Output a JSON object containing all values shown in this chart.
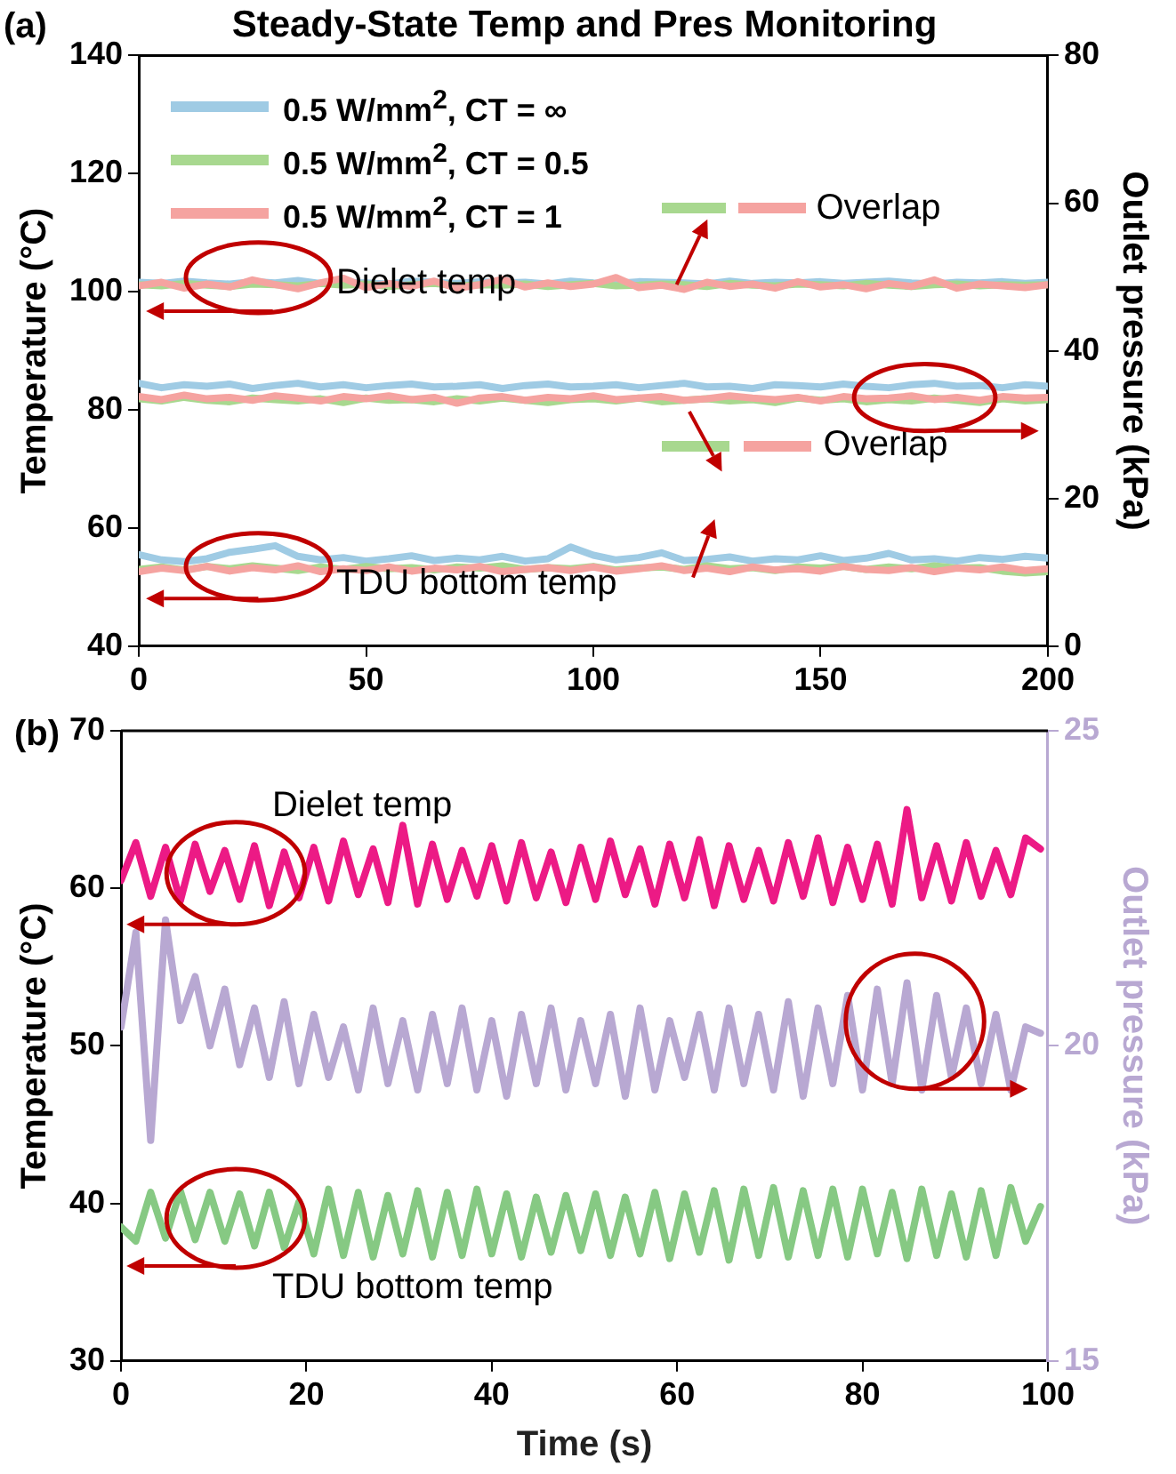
{
  "chart_data": [
    {
      "type": "line",
      "title": "Steady-State Temp and Pres Monitoring",
      "ylabel": "Temperature (°C)",
      "y2label": "Outlet pressure (kPa)",
      "annotations": [
        "(a)",
        "Dielet temp",
        "Overlap",
        "Overlap",
        "TDU bottom temp"
      ],
      "x": [
        0,
        5,
        10,
        15,
        20,
        25,
        30,
        35,
        40,
        45,
        50,
        55,
        60,
        65,
        70,
        75,
        80,
        85,
        90,
        95,
        100,
        105,
        110,
        115,
        120,
        125,
        130,
        135,
        140,
        145,
        150,
        155,
        160,
        165,
        170,
        175,
        180,
        185,
        190,
        195,
        200
      ],
      "xlim": [
        0,
        200
      ],
      "xticks": [
        0,
        50,
        100,
        150,
        200
      ],
      "ylim": [
        40,
        140
      ],
      "yticks": [
        40,
        60,
        80,
        100,
        120,
        140
      ],
      "y2lim": [
        0,
        80
      ],
      "y2ticks": [
        0,
        20,
        40,
        60,
        80
      ],
      "legend": "top left",
      "marker": "none",
      "line_style": "solid",
      "series": [
        {
          "name": "0.5 W/mm$^{2}$, CT = ∞",
          "color": "#9fcbe4",
          "values": [
            101.6,
            101.4,
            101.8,
            101.5,
            101.3,
            101.7,
            101.5,
            101.9,
            101.4,
            101.6,
            101.5,
            101.3,
            101.8,
            101.6,
            101.4,
            101.7,
            101.5,
            101.6,
            101.3,
            101.8,
            101.5,
            101.4,
            101.7,
            101.6,
            101.5,
            101.3,
            101.8,
            101.4,
            101.6,
            101.5,
            101.7,
            101.4,
            101.6,
            101.8,
            101.5,
            101.3,
            101.6,
            101.5,
            101.7,
            101.4,
            101.6
          ]
        },
        {
          "name": "0.5 W/mm$^{2}$, CT = 0.5",
          "color": "#a8d88f",
          "values": [
            101.2,
            101.0,
            101.4,
            101.1,
            100.9,
            101.3,
            101.2,
            101.0,
            101.4,
            101.1,
            101.3,
            100.9,
            101.2,
            101.4,
            101.0,
            101.2,
            101.1,
            101.3,
            100.9,
            101.2,
            101.4,
            101.0,
            101.1,
            101.3,
            101.2,
            100.9,
            101.4,
            101.1,
            101.0,
            101.3,
            101.2,
            101.0,
            101.4,
            101.1,
            100.9,
            101.2,
            101.3,
            101.0,
            101.2,
            101.1,
            101.2
          ]
        },
        {
          "name": "0.5 W/mm$^{2}$, CT = 1",
          "color": "#f5a3a0",
          "values": [
            101.0,
            101.6,
            100.6,
            101.3,
            100.8,
            102.0,
            101.2,
            100.5,
            101.5,
            102.3,
            100.7,
            101.4,
            100.9,
            101.8,
            100.6,
            101.2,
            102.1,
            100.8,
            101.5,
            100.9,
            101.3,
            102.4,
            100.7,
            101.1,
            100.4,
            101.6,
            100.9,
            101.3,
            100.6,
            101.7,
            100.8,
            101.2,
            100.5,
            101.4,
            100.9,
            102.0,
            100.6,
            101.3,
            101.0,
            100.7,
            101.2
          ]
        },
        {
          "color": "#9fcbe4",
          "axis": "y2",
          "values": [
            35.6,
            35.0,
            35.4,
            35.2,
            35.5,
            34.9,
            35.3,
            35.6,
            35.1,
            35.4,
            35.0,
            35.3,
            35.5,
            35.1,
            35.2,
            35.4,
            34.9,
            35.3,
            35.5,
            35.1,
            35.2,
            35.4,
            35.0,
            35.3,
            35.6,
            35.1,
            35.2,
            34.9,
            35.4,
            35.3,
            35.1,
            35.5,
            35.2,
            35.0,
            35.4,
            35.6,
            35.2,
            35.3,
            35.0,
            35.4,
            35.2
          ]
        },
        {
          "color": "#a8d88f",
          "axis": "y2",
          "values": [
            33.5,
            33.2,
            33.7,
            33.3,
            33.1,
            33.6,
            33.4,
            33.2,
            33.5,
            33.0,
            33.6,
            33.3,
            33.4,
            33.1,
            33.5,
            33.2,
            33.6,
            33.3,
            33.0,
            33.4,
            33.5,
            33.2,
            33.6,
            33.1,
            33.3,
            33.5,
            33.2,
            33.4,
            33.0,
            33.6,
            33.3,
            33.5,
            33.1,
            33.4,
            33.2,
            33.6,
            33.3,
            33.0,
            33.5,
            33.2,
            33.4
          ]
        },
        {
          "color": "#f5a3a0",
          "axis": "y2",
          "values": [
            33.8,
            33.4,
            34.0,
            33.5,
            33.7,
            33.3,
            33.9,
            33.6,
            33.2,
            33.8,
            33.5,
            33.9,
            33.4,
            33.7,
            32.9,
            33.6,
            33.8,
            33.3,
            33.7,
            33.5,
            33.9,
            33.4,
            33.6,
            33.8,
            33.3,
            33.5,
            33.9,
            33.6,
            33.4,
            33.7,
            33.2,
            33.8,
            33.5,
            33.6,
            33.9,
            33.4,
            33.7,
            33.3,
            33.8,
            33.6,
            33.7
          ]
        },
        {
          "color": "#9fcbe4",
          "values": [
            55.5,
            54.6,
            54.3,
            54.8,
            55.9,
            56.4,
            57.0,
            55.2,
            54.6,
            55.0,
            54.4,
            54.8,
            55.3,
            54.5,
            54.9,
            54.6,
            55.2,
            54.4,
            54.8,
            56.8,
            55.4,
            54.6,
            55.0,
            55.8,
            54.5,
            54.7,
            55.1,
            54.4,
            54.8,
            54.6,
            55.3,
            54.5,
            54.9,
            55.7,
            54.6,
            54.8,
            54.4,
            55.0,
            54.7,
            55.2,
            54.9
          ]
        },
        {
          "color": "#a8d88f",
          "values": [
            53.0,
            53.4,
            52.9,
            53.5,
            53.1,
            53.6,
            53.2,
            52.8,
            53.4,
            53.0,
            53.5,
            53.1,
            53.3,
            52.9,
            53.4,
            53.2,
            53.6,
            53.0,
            53.3,
            53.1,
            53.5,
            52.9,
            53.2,
            53.4,
            53.0,
            53.6,
            53.1,
            53.3,
            52.8,
            53.4,
            53.2,
            53.5,
            53.0,
            53.4,
            53.1,
            53.6,
            53.2,
            53.3,
            52.7,
            52.4,
            52.6
          ]
        },
        {
          "color": "#f5a3a0",
          "values": [
            52.6,
            53.2,
            52.8,
            53.5,
            52.7,
            53.3,
            52.9,
            53.6,
            52.6,
            53.1,
            52.8,
            53.4,
            52.7,
            53.2,
            52.9,
            53.5,
            52.6,
            53.0,
            53.3,
            52.8,
            53.4,
            52.7,
            53.1,
            53.6,
            52.8,
            53.2,
            52.6,
            53.4,
            52.9,
            53.1,
            52.7,
            53.5,
            53.0,
            52.8,
            53.3,
            52.6,
            53.2,
            52.9,
            53.4,
            52.8,
            53.1
          ]
        }
      ]
    },
    {
      "type": "line",
      "xlabel": "Time (s)",
      "ylabel": "Temperature (°C)",
      "y2label": "Outlet pressure (kPa)",
      "annotations": [
        "(b)",
        "Dielet temp",
        "TDU bottom temp"
      ],
      "x": [
        0,
        1.6,
        3.2,
        4.8,
        6.4,
        8,
        9.6,
        11.2,
        12.8,
        14.4,
        16,
        17.6,
        19.2,
        20.8,
        22.4,
        24,
        25.6,
        27.2,
        28.8,
        30.4,
        32,
        33.6,
        35.2,
        36.8,
        38.4,
        40,
        41.6,
        43.2,
        44.8,
        46.4,
        48,
        49.6,
        51.2,
        52.8,
        54.4,
        56,
        57.6,
        59.2,
        60.8,
        62.4,
        64,
        65.6,
        67.2,
        68.8,
        70.4,
        72,
        73.6,
        75.2,
        76.8,
        78.4,
        80,
        81.6,
        83.2,
        84.8,
        86.4,
        88,
        89.6,
        91.2,
        92.8,
        94.4,
        96,
        97.6,
        99.2
      ],
      "xlim": [
        0,
        100
      ],
      "xticks": [
        0,
        20,
        40,
        60,
        80,
        100
      ],
      "ylim": [
        30,
        70
      ],
      "yticks": [
        30,
        40,
        50,
        60,
        70
      ],
      "y2lim": [
        15,
        25
      ],
      "y2ticks": [
        15,
        20,
        25
      ],
      "marker": "none",
      "line_style": "solid",
      "series": [
        {
          "color": "#ec1a85",
          "values": [
            60.5,
            62.9,
            59.5,
            62.6,
            59.2,
            62.8,
            59.8,
            62.4,
            59.3,
            62.7,
            58.9,
            62.3,
            59.4,
            62.6,
            59.2,
            63.0,
            59.6,
            62.5,
            59.1,
            64.0,
            59.0,
            62.8,
            59.3,
            62.4,
            59.5,
            62.7,
            59.2,
            62.9,
            59.4,
            62.3,
            59.1,
            62.6,
            59.3,
            63.0,
            59.6,
            62.5,
            59.0,
            62.8,
            59.4,
            63.1,
            58.9,
            62.7,
            59.3,
            62.4,
            59.2,
            62.9,
            59.5,
            63.2,
            59.1,
            62.6,
            59.3,
            62.8,
            59.0,
            65.0,
            59.4,
            62.7,
            59.2,
            62.9,
            59.5,
            62.4,
            59.6,
            63.2,
            62.5
          ]
        },
        {
          "color": "#b8a8d2",
          "axis": "y2",
          "values": [
            20.3,
            21.8,
            18.5,
            22.0,
            20.4,
            21.1,
            20.0,
            20.9,
            19.7,
            20.6,
            19.5,
            20.7,
            19.4,
            20.5,
            19.5,
            20.3,
            19.3,
            20.6,
            19.4,
            20.4,
            19.3,
            20.5,
            19.4,
            20.6,
            19.3,
            20.4,
            19.2,
            20.5,
            19.4,
            20.6,
            19.3,
            20.4,
            19.4,
            20.5,
            19.2,
            20.6,
            19.3,
            20.4,
            19.5,
            20.5,
            19.3,
            20.6,
            19.4,
            20.5,
            19.3,
            20.7,
            19.2,
            20.6,
            19.4,
            20.8,
            19.3,
            20.9,
            19.4,
            21.0,
            19.3,
            20.8,
            19.5,
            20.6,
            19.4,
            20.5,
            19.3,
            20.3,
            20.2
          ]
        },
        {
          "color": "#86c983",
          "values": [
            38.5,
            37.6,
            40.7,
            37.8,
            40.8,
            37.7,
            40.7,
            37.6,
            40.6,
            37.3,
            40.7,
            37.2,
            40.1,
            36.8,
            40.9,
            36.7,
            40.7,
            36.6,
            40.5,
            36.8,
            40.8,
            36.6,
            40.7,
            36.7,
            40.9,
            36.8,
            40.6,
            36.6,
            40.4,
            36.9,
            40.5,
            37.0,
            40.6,
            36.7,
            40.4,
            36.8,
            40.7,
            36.5,
            40.6,
            36.9,
            40.8,
            36.4,
            40.9,
            36.7,
            41.0,
            36.6,
            40.8,
            36.7,
            40.9,
            36.6,
            40.9,
            36.8,
            40.7,
            36.5,
            40.9,
            36.7,
            40.6,
            36.6,
            40.8,
            36.7,
            41.0,
            37.6,
            39.8
          ]
        }
      ]
    }
  ]
}
